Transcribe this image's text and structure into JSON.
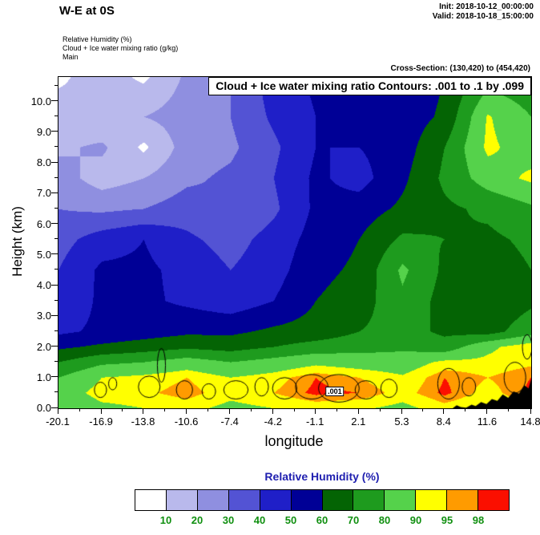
{
  "header": {
    "title": "W-E at 0S",
    "init": "Init: 2018-10-12_00:00:00",
    "valid": "Valid: 2018-10-18_15:00:00",
    "field_lines": [
      "Relative Humidity  (%)",
      "Cloud + Ice water mixing ratio  (g/kg)",
      "Main"
    ],
    "cross_section": "Cross-Section: (130,420) to (454,420)"
  },
  "plot": {
    "contour_box_label": "Cloud + Ice water mixing ratio Contours: .001 to .1 by .099",
    "xlabel": "longitude",
    "ylabel": "Height (km)"
  },
  "colorbar": {
    "title": "Relative Humidity  (%)",
    "tick_labels": [
      "10",
      "20",
      "30",
      "40",
      "50",
      "60",
      "70",
      "80",
      "90",
      "95",
      "98"
    ],
    "title_color": "#2020b0",
    "label_color": "#0f8f0f"
  },
  "chart_data": {
    "type": "heatmap",
    "title": "W-E at 0S",
    "xlabel": "longitude",
    "ylabel": "Height (km)",
    "xlim": [
      -20.1,
      14.8
    ],
    "ylim": [
      0,
      10.8
    ],
    "x_tick_values": [
      -20.1,
      -16.9,
      -13.8,
      -10.6,
      -7.4,
      -4.2,
      -1.1,
      2.1,
      5.3,
      8.4,
      11.6,
      14.8
    ],
    "x_tick_labels": [
      "-20.1",
      "-16.9",
      "-13.8",
      "-10.6",
      "-7.4",
      "-4.2",
      "-1.1",
      "2.1",
      "5.3",
      "8.4",
      "11.6",
      "14.8"
    ],
    "y_tick_values": [
      0,
      1,
      2,
      3,
      4,
      5,
      6,
      7,
      8,
      9,
      10
    ],
    "y_tick_labels": [
      "0.0",
      "1.0",
      "2.0",
      "3.0",
      "4.0",
      "5.0",
      "6.0",
      "7.0",
      "8.0",
      "9.0",
      "10.0"
    ],
    "legend": {
      "title": "Relative Humidity  (%)",
      "levels": [
        10,
        20,
        30,
        40,
        50,
        60,
        70,
        80,
        90,
        95,
        98
      ],
      "colors": [
        "#ffffff",
        "#b9b9ec",
        "#8f8fe0",
        "#5353d4",
        "#1f1fc8",
        "#000096",
        "#046404",
        "#1e9b1e",
        "#55d24b",
        "#ffff00",
        "#ff9b00",
        "#fb0f00"
      ]
    },
    "field": {
      "name": "Relative Humidity (%)",
      "grid_lon": [
        -20.1,
        -16.9,
        -13.8,
        -10.6,
        -7.4,
        -4.2,
        -1.1,
        2.1,
        5.3,
        8.4,
        11.6,
        14.8
      ],
      "grid_km": [
        0,
        0.5,
        1.0,
        1.5,
        2.0,
        2.5,
        3.5,
        4.5,
        5.5,
        6.5,
        7.5,
        8.5,
        9.5,
        10.8
      ],
      "values": [
        [
          82,
          88,
          90,
          92,
          88,
          90,
          92,
          91,
          88,
          93,
          90,
          93
        ],
        [
          85,
          93,
          94,
          97,
          92,
          95,
          99,
          98,
          93,
          99,
          93,
          99
        ],
        [
          80,
          90,
          92,
          95,
          90,
          93,
          98,
          95,
          91,
          98,
          95,
          98
        ],
        [
          70,
          78,
          80,
          85,
          80,
          84,
          88,
          86,
          85,
          92,
          92,
          94
        ],
        [
          58,
          62,
          65,
          68,
          66,
          70,
          74,
          76,
          78,
          74,
          88,
          95
        ],
        [
          48,
          52,
          55,
          58,
          58,
          62,
          64,
          70,
          74,
          68,
          66,
          76
        ],
        [
          42,
          52,
          52,
          48,
          44,
          50,
          60,
          65,
          78,
          66,
          62,
          68
        ],
        [
          40,
          52,
          52,
          47,
          40,
          46,
          57,
          62,
          82,
          68,
          65,
          70
        ],
        [
          36,
          45,
          50,
          42,
          36,
          44,
          54,
          60,
          72,
          70,
          68,
          72
        ],
        [
          30,
          28,
          30,
          35,
          30,
          38,
          52,
          55,
          62,
          68,
          72,
          78
        ],
        [
          25,
          15,
          20,
          28,
          32,
          40,
          52,
          46,
          58,
          72,
          85,
          92
        ],
        [
          18,
          22,
          8,
          25,
          28,
          38,
          50,
          50,
          55,
          70,
          92,
          85
        ],
        [
          15,
          10,
          20,
          25,
          30,
          42,
          50,
          52,
          54,
          62,
          91,
          80
        ],
        [
          8,
          15,
          8,
          22,
          30,
          45,
          52,
          55,
          52,
          60,
          75,
          72
        ]
      ]
    },
    "overlay_contour": {
      "name": "Cloud + Ice water mixing ratio (g/kg)",
      "levels_text": ".001 to .1 by .099",
      "label": ".001",
      "label_pos": {
        "lon": 0.3,
        "km": 0.55
      },
      "outlines": [
        {
          "x": -17.0,
          "y": 0.6,
          "rx": 0.45,
          "ry": 0.25
        },
        {
          "x": -16.1,
          "y": 0.8,
          "rx": 0.3,
          "ry": 0.2
        },
        {
          "x": -13.4,
          "y": 0.7,
          "rx": 0.8,
          "ry": 0.35
        },
        {
          "x": -12.5,
          "y": 1.4,
          "rx": 0.3,
          "ry": 0.55
        },
        {
          "x": -10.8,
          "y": 0.6,
          "rx": 0.6,
          "ry": 0.3
        },
        {
          "x": -9.0,
          "y": 0.55,
          "rx": 0.5,
          "ry": 0.25
        },
        {
          "x": -7.0,
          "y": 0.6,
          "rx": 0.9,
          "ry": 0.3
        },
        {
          "x": -5.1,
          "y": 0.7,
          "rx": 0.5,
          "ry": 0.3
        },
        {
          "x": -3.4,
          "y": 0.65,
          "rx": 0.9,
          "ry": 0.35
        },
        {
          "x": -1.4,
          "y": 0.7,
          "rx": 1.2,
          "ry": 0.4
        },
        {
          "x": 0.6,
          "y": 0.65,
          "rx": 1.5,
          "ry": 0.45
        },
        {
          "x": 2.6,
          "y": 0.6,
          "rx": 0.8,
          "ry": 0.3
        },
        {
          "x": 4.3,
          "y": 0.65,
          "rx": 0.6,
          "ry": 0.3
        },
        {
          "x": 8.7,
          "y": 0.8,
          "rx": 0.8,
          "ry": 0.5
        },
        {
          "x": 10.2,
          "y": 0.7,
          "rx": 0.5,
          "ry": 0.3
        },
        {
          "x": 13.6,
          "y": 1.0,
          "rx": 0.8,
          "ry": 0.5
        },
        {
          "x": 14.5,
          "y": 2.0,
          "rx": 0.35,
          "ry": 0.4
        }
      ]
    },
    "terrain": [
      [
        9.0,
        0.0
      ],
      [
        9.3,
        0.1
      ],
      [
        9.6,
        0.04
      ],
      [
        10.0,
        0.02
      ],
      [
        10.4,
        0.12
      ],
      [
        10.7,
        0.07
      ],
      [
        11.1,
        0.2
      ],
      [
        11.5,
        0.14
      ],
      [
        11.9,
        0.3
      ],
      [
        12.3,
        0.24
      ],
      [
        12.7,
        0.45
      ],
      [
        13.1,
        0.34
      ],
      [
        13.5,
        0.55
      ],
      [
        13.9,
        0.48
      ],
      [
        14.3,
        0.75
      ],
      [
        14.6,
        0.65
      ],
      [
        14.8,
        0.95
      ]
    ]
  }
}
